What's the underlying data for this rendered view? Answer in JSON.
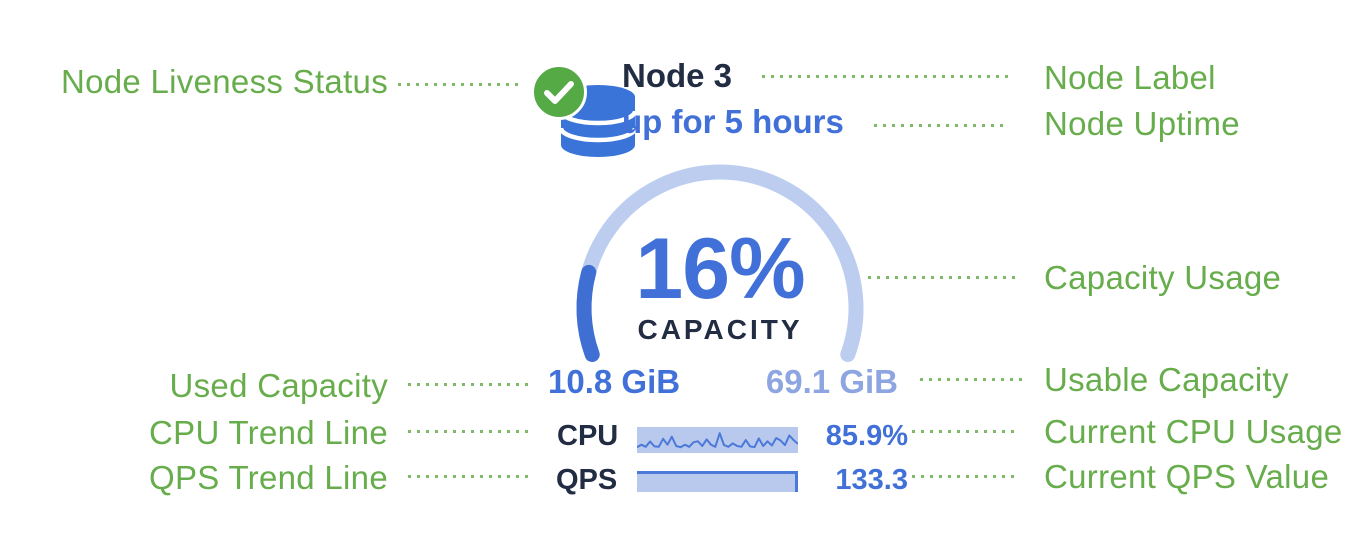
{
  "node": {
    "label": "Node 3",
    "uptime": "up for 5 hours",
    "liveness_icon": "green-checkmark",
    "node_icon": "database"
  },
  "capacity": {
    "percent": 16,
    "percent_label": "16%",
    "title": "CAPACITY",
    "used": "10.8 GiB",
    "usable": "69.1 GiB"
  },
  "metrics": {
    "cpu": {
      "label": "CPU",
      "value": "85.9%",
      "trend": [
        0.18,
        0.3,
        0.2,
        0.45,
        0.22,
        0.2,
        0.58,
        0.3,
        0.68,
        0.24,
        0.18,
        0.3,
        0.2,
        0.42,
        0.46,
        0.24,
        0.55,
        0.3,
        0.2,
        0.85,
        0.28,
        0.2,
        0.36,
        0.24,
        0.2,
        0.52,
        0.22,
        0.18,
        0.6,
        0.24,
        0.46,
        0.26,
        0.62,
        0.5,
        0.28,
        0.74,
        0.52,
        0.34
      ]
    },
    "qps": {
      "label": "QPS",
      "value": "133.3",
      "trend_level": 0.95
    }
  },
  "annotations": {
    "left": [
      {
        "id": "node-liveness-status",
        "label": "Node Liveness Status"
      },
      {
        "id": "used-capacity",
        "label": "Used Capacity"
      },
      {
        "id": "cpu-trend-line",
        "label": "CPU Trend Line"
      },
      {
        "id": "qps-trend-line",
        "label": "QPS Trend Line"
      }
    ],
    "right": [
      {
        "id": "node-label",
        "label": "Node Label"
      },
      {
        "id": "node-uptime",
        "label": "Node Uptime"
      },
      {
        "id": "capacity-usage",
        "label": "Capacity Usage"
      },
      {
        "id": "usable-capacity",
        "label": "Usable Capacity"
      },
      {
        "id": "current-cpu-usage",
        "label": "Current CPU Usage"
      },
      {
        "id": "current-qps-value",
        "label": "Current QPS Value"
      }
    ]
  },
  "colors": {
    "annotation_green": "#67ad4c",
    "widget_dark": "#222c42",
    "widget_blue": "#4171d8",
    "widget_light_blue": "#8da5e0",
    "gauge_track": "#bccdf0",
    "gauge_fill": "#3f6fd3",
    "spark_fill": "#b9c9ee",
    "spark_line": "#4a79d8",
    "liveness_green": "#55aa46",
    "db_icon_blue": "#3b74d8"
  }
}
